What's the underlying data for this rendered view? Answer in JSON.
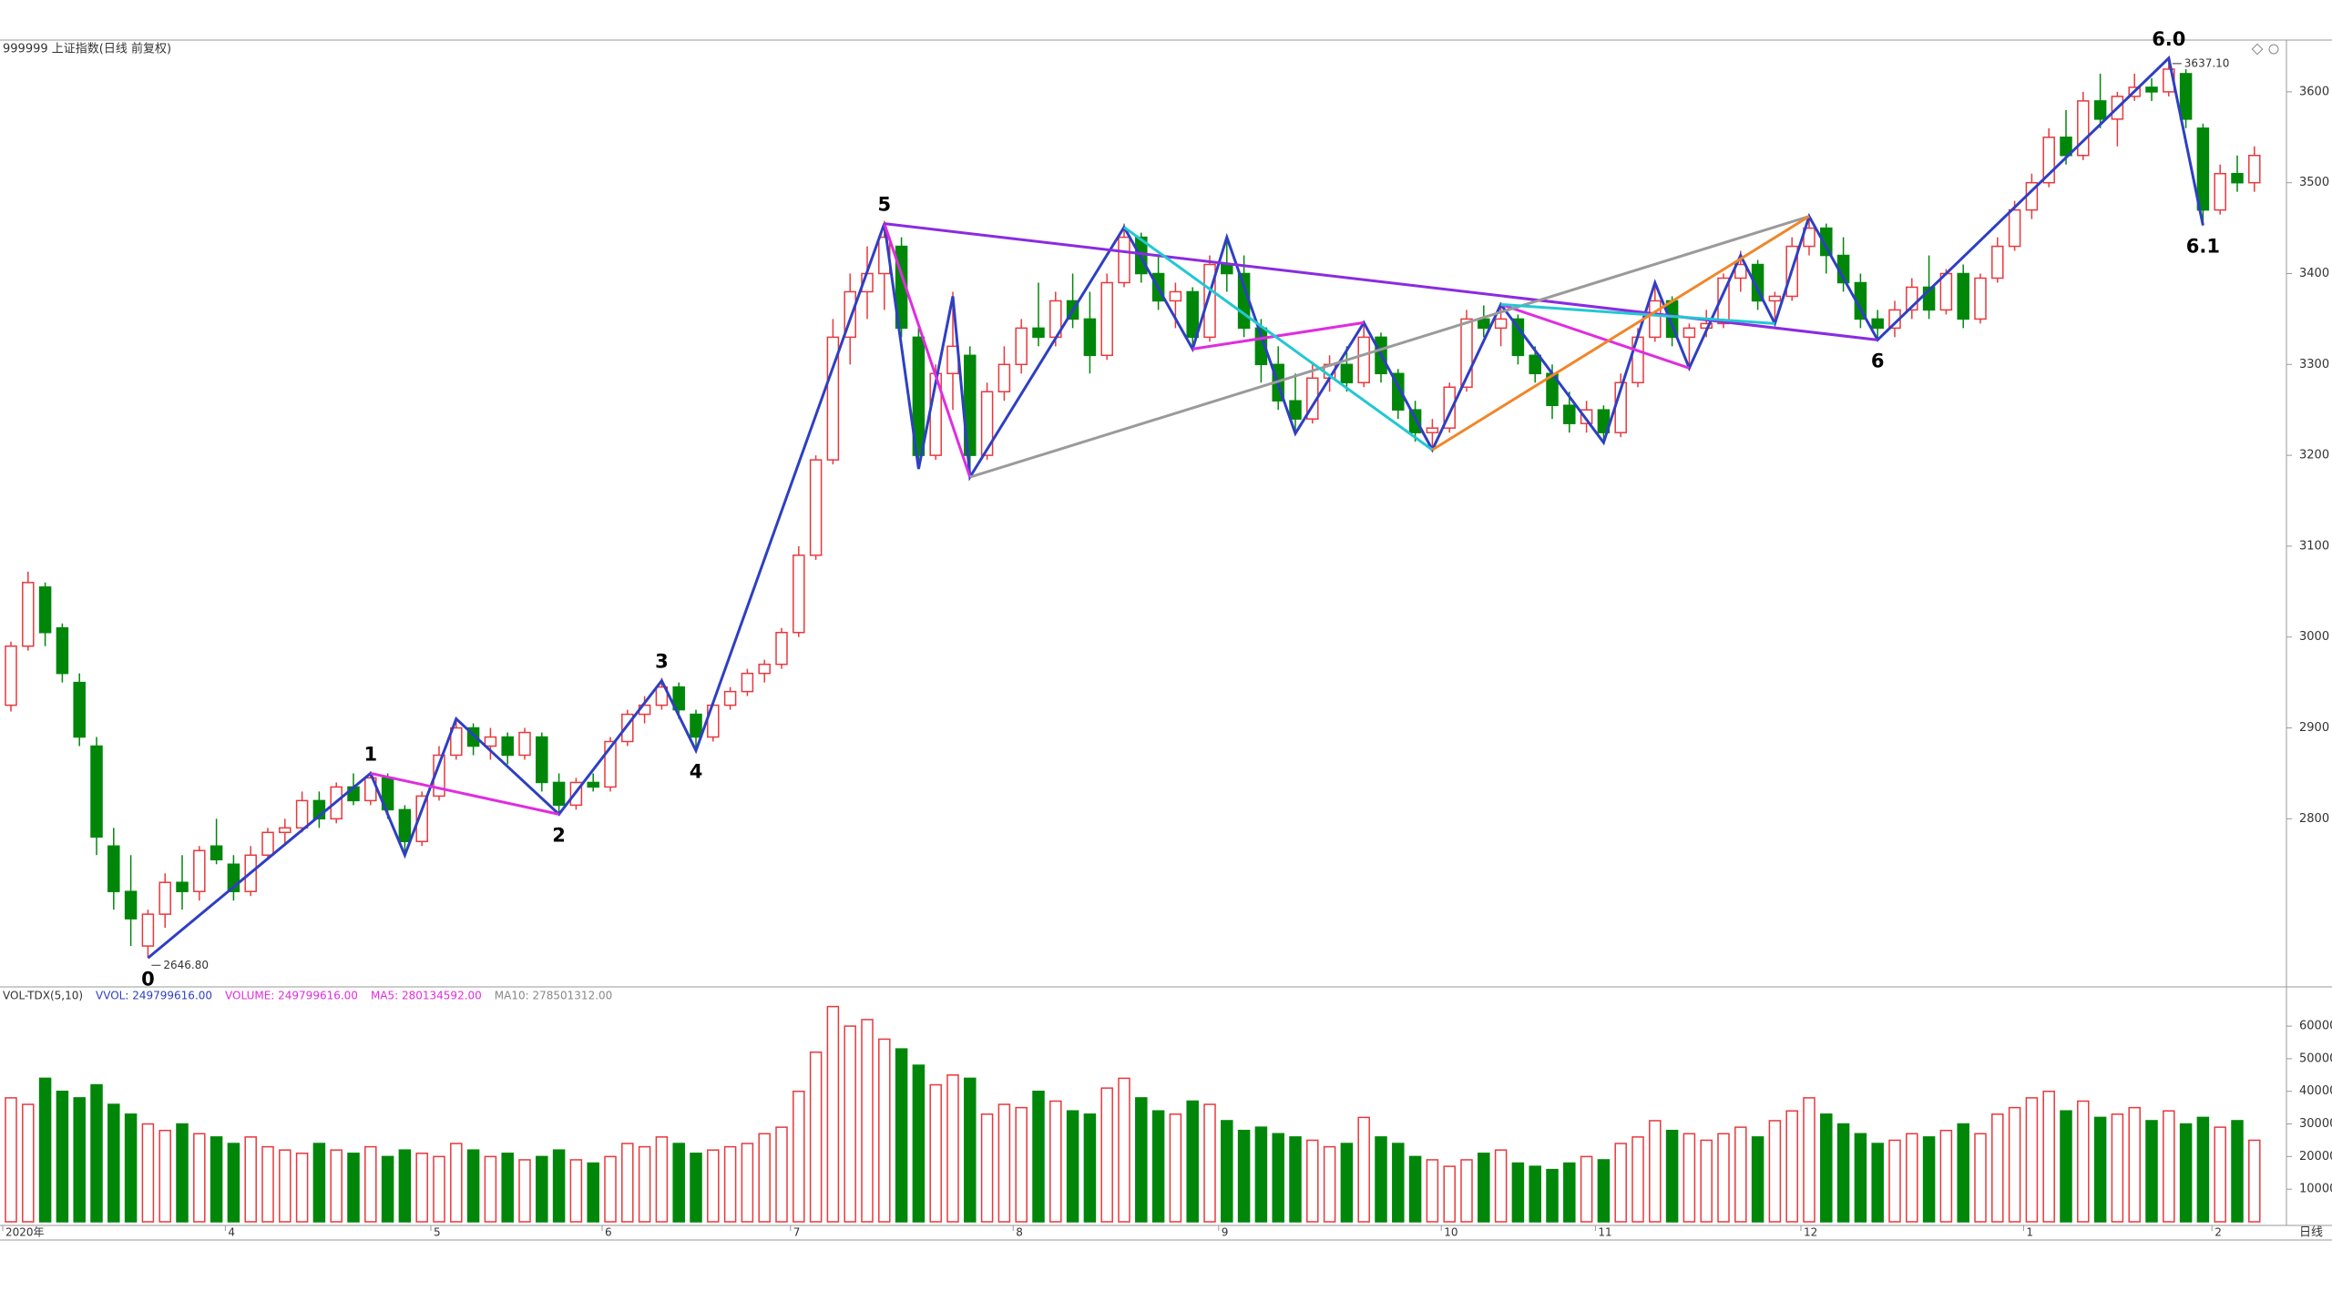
{
  "chart_data": {
    "type": "candlestick",
    "title": "999999 上证指数(日线 前复权)",
    "categories": [
      "2020年",
      null,
      null,
      null,
      null,
      null,
      null,
      null,
      null,
      null,
      null,
      null,
      null,
      "4",
      null,
      null,
      null,
      null,
      null,
      null,
      null,
      null,
      null,
      null,
      null,
      "5",
      null,
      null,
      null,
      null,
      null,
      null,
      null,
      null,
      null,
      "6",
      null,
      null,
      null,
      null,
      null,
      null,
      null,
      null,
      null,
      null,
      "7",
      null,
      null,
      null,
      null,
      null,
      null,
      null,
      null,
      null,
      null,
      null,
      null,
      "8",
      null,
      null,
      null,
      null,
      null,
      null,
      null,
      null,
      null,
      null,
      null,
      "9",
      null,
      null,
      null,
      null,
      null,
      null,
      null,
      null,
      null,
      null,
      null,
      null,
      "10",
      null,
      null,
      null,
      null,
      null,
      null,
      null,
      null,
      "11",
      null,
      null,
      null,
      null,
      null,
      null,
      null,
      null,
      null,
      null,
      null,
      "12",
      null,
      null,
      null,
      null,
      null,
      null,
      null,
      null,
      null,
      null,
      null,
      null,
      "1",
      null,
      null,
      null,
      null,
      null,
      null,
      null,
      null,
      null,
      null,
      "2",
      null,
      null
    ],
    "ohlc": [
      [
        2925,
        2995,
        2918,
        2990
      ],
      [
        2990,
        3072,
        2985,
        3060
      ],
      [
        3055,
        3060,
        2990,
        3005
      ],
      [
        3010,
        3015,
        2950,
        2960
      ],
      [
        2950,
        2960,
        2880,
        2890
      ],
      [
        2880,
        2890,
        2760,
        2780
      ],
      [
        2770,
        2790,
        2700,
        2720
      ],
      [
        2720,
        2760,
        2660,
        2690
      ],
      [
        2660,
        2700,
        2646.8,
        2695
      ],
      [
        2695,
        2740,
        2680,
        2730
      ],
      [
        2730,
        2760,
        2700,
        2720
      ],
      [
        2720,
        2770,
        2710,
        2765
      ],
      [
        2770,
        2800,
        2750,
        2755
      ],
      [
        2750,
        2760,
        2710,
        2720
      ],
      [
        2720,
        2770,
        2715,
        2760
      ],
      [
        2760,
        2790,
        2755,
        2785
      ],
      [
        2785,
        2800,
        2770,
        2790
      ],
      [
        2790,
        2830,
        2785,
        2820
      ],
      [
        2820,
        2830,
        2790,
        2800
      ],
      [
        2800,
        2840,
        2795,
        2835
      ],
      [
        2835,
        2850,
        2815,
        2820
      ],
      [
        2820,
        2852,
        2815,
        2845
      ],
      [
        2845,
        2850,
        2800,
        2810
      ],
      [
        2810,
        2815,
        2760,
        2775
      ],
      [
        2775,
        2830,
        2770,
        2825
      ],
      [
        2825,
        2880,
        2820,
        2870
      ],
      [
        2870,
        2912,
        2865,
        2900
      ],
      [
        2900,
        2905,
        2870,
        2880
      ],
      [
        2880,
        2900,
        2865,
        2890
      ],
      [
        2890,
        2895,
        2860,
        2870
      ],
      [
        2870,
        2900,
        2865,
        2895
      ],
      [
        2890,
        2895,
        2830,
        2840
      ],
      [
        2840,
        2850,
        2805,
        2815
      ],
      [
        2815,
        2845,
        2810,
        2840
      ],
      [
        2840,
        2850,
        2830,
        2835
      ],
      [
        2835,
        2890,
        2830,
        2885
      ],
      [
        2885,
        2920,
        2880,
        2915
      ],
      [
        2915,
        2935,
        2905,
        2925
      ],
      [
        2925,
        2955,
        2920,
        2945
      ],
      [
        2945,
        2950,
        2910,
        2920
      ],
      [
        2915,
        2920,
        2875,
        2890
      ],
      [
        2890,
        2930,
        2885,
        2925
      ],
      [
        2925,
        2945,
        2920,
        2940
      ],
      [
        2940,
        2965,
        2935,
        2960
      ],
      [
        2960,
        2975,
        2950,
        2970
      ],
      [
        2970,
        3010,
        2965,
        3005
      ],
      [
        3005,
        3100,
        3000,
        3090
      ],
      [
        3090,
        3200,
        3085,
        3195
      ],
      [
        3195,
        3350,
        3190,
        3330
      ],
      [
        3330,
        3400,
        3300,
        3380
      ],
      [
        3380,
        3430,
        3350,
        3400
      ],
      [
        3400,
        3458,
        3360,
        3440
      ],
      [
        3430,
        3440,
        3330,
        3340
      ],
      [
        3330,
        3340,
        3185,
        3200
      ],
      [
        3200,
        3300,
        3195,
        3290
      ],
      [
        3290,
        3380,
        3250,
        3320
      ],
      [
        3310,
        3320,
        3176,
        3200
      ],
      [
        3200,
        3280,
        3195,
        3270
      ],
      [
        3270,
        3320,
        3260,
        3300
      ],
      [
        3300,
        3350,
        3290,
        3340
      ],
      [
        3340,
        3390,
        3320,
        3330
      ],
      [
        3330,
        3380,
        3320,
        3370
      ],
      [
        3370,
        3400,
        3340,
        3350
      ],
      [
        3350,
        3380,
        3290,
        3310
      ],
      [
        3310,
        3400,
        3305,
        3390
      ],
      [
        3390,
        3455,
        3385,
        3440
      ],
      [
        3440,
        3445,
        3390,
        3400
      ],
      [
        3400,
        3420,
        3360,
        3370
      ],
      [
        3370,
        3390,
        3340,
        3380
      ],
      [
        3380,
        3385,
        3315,
        3330
      ],
      [
        3330,
        3420,
        3325,
        3410
      ],
      [
        3410,
        3442,
        3380,
        3400
      ],
      [
        3400,
        3420,
        3330,
        3340
      ],
      [
        3340,
        3350,
        3280,
        3300
      ],
      [
        3300,
        3320,
        3250,
        3260
      ],
      [
        3260,
        3290,
        3224,
        3240
      ],
      [
        3240,
        3300,
        3235,
        3285
      ],
      [
        3285,
        3310,
        3270,
        3300
      ],
      [
        3300,
        3320,
        3270,
        3280
      ],
      [
        3280,
        3348,
        3275,
        3330
      ],
      [
        3330,
        3335,
        3280,
        3290
      ],
      [
        3290,
        3295,
        3240,
        3250
      ],
      [
        3250,
        3260,
        3215,
        3225
      ],
      [
        3225,
        3240,
        3206,
        3230
      ],
      [
        3230,
        3280,
        3225,
        3275
      ],
      [
        3275,
        3360,
        3270,
        3350
      ],
      [
        3350,
        3365,
        3330,
        3340
      ],
      [
        3340,
        3368,
        3320,
        3350
      ],
      [
        3350,
        3355,
        3300,
        3310
      ],
      [
        3310,
        3320,
        3280,
        3290
      ],
      [
        3290,
        3300,
        3240,
        3255
      ],
      [
        3255,
        3270,
        3225,
        3235
      ],
      [
        3235,
        3260,
        3225,
        3250
      ],
      [
        3250,
        3255,
        3214,
        3225
      ],
      [
        3225,
        3290,
        3220,
        3280
      ],
      [
        3280,
        3340,
        3275,
        3330
      ],
      [
        3330,
        3392,
        3325,
        3370
      ],
      [
        3370,
        3375,
        3320,
        3330
      ],
      [
        3330,
        3345,
        3296,
        3340
      ],
      [
        3340,
        3360,
        3330,
        3345
      ],
      [
        3345,
        3400,
        3340,
        3395
      ],
      [
        3395,
        3425,
        3380,
        3410
      ],
      [
        3410,
        3415,
        3360,
        3370
      ],
      [
        3370,
        3380,
        3345,
        3375
      ],
      [
        3375,
        3440,
        3370,
        3430
      ],
      [
        3430,
        3465,
        3420,
        3450
      ],
      [
        3450,
        3455,
        3400,
        3420
      ],
      [
        3420,
        3440,
        3380,
        3390
      ],
      [
        3390,
        3400,
        3340,
        3350
      ],
      [
        3350,
        3360,
        3327,
        3340
      ],
      [
        3340,
        3370,
        3330,
        3360
      ],
      [
        3360,
        3395,
        3350,
        3385
      ],
      [
        3385,
        3420,
        3350,
        3360
      ],
      [
        3360,
        3405,
        3355,
        3400
      ],
      [
        3400,
        3410,
        3340,
        3350
      ],
      [
        3350,
        3400,
        3345,
        3395
      ],
      [
        3395,
        3440,
        3390,
        3430
      ],
      [
        3430,
        3480,
        3425,
        3470
      ],
      [
        3470,
        3510,
        3460,
        3500
      ],
      [
        3500,
        3560,
        3495,
        3550
      ],
      [
        3550,
        3580,
        3520,
        3530
      ],
      [
        3530,
        3600,
        3525,
        3590
      ],
      [
        3590,
        3620,
        3560,
        3570
      ],
      [
        3570,
        3600,
        3540,
        3595
      ],
      [
        3595,
        3620,
        3590,
        3605
      ],
      [
        3605,
        3615,
        3590,
        3600
      ],
      [
        3600,
        3637.1,
        3595,
        3625
      ],
      [
        3620,
        3625,
        3560,
        3570
      ],
      [
        3560,
        3565,
        3453,
        3470
      ],
      [
        3470,
        3520,
        3465,
        3510
      ],
      [
        3510,
        3530,
        3490,
        3500
      ],
      [
        3500,
        3540,
        3490,
        3530
      ]
    ],
    "up_color": "#e8383d",
    "down_color": "#00870a",
    "ylim": [
      2616,
      3657
    ],
    "yticks": [
      2800,
      2900,
      3000,
      3100,
      3200,
      3300,
      3400,
      3500,
      3600
    ],
    "price_notes": [
      {
        "value": 2646.8,
        "label": "2646.80",
        "x": 8
      },
      {
        "value": 3637.1,
        "label": "3637.10",
        "x": 126
      }
    ],
    "waves": [
      {
        "color": "#2e3fc4",
        "points": [
          [
            8,
            2646.8
          ],
          [
            21,
            2850
          ],
          [
            23,
            2760
          ],
          [
            26,
            2910
          ],
          [
            32,
            2805
          ],
          [
            38,
            2952
          ],
          [
            40,
            2875
          ],
          [
            51,
            3455
          ],
          [
            53,
            3185
          ],
          [
            55,
            3375
          ],
          [
            56,
            3176
          ],
          [
            65,
            3451
          ],
          [
            69,
            3317
          ],
          [
            71,
            3440
          ],
          [
            75,
            3224
          ],
          [
            79,
            3346
          ],
          [
            83,
            3206
          ],
          [
            87,
            3366
          ],
          [
            93,
            3214
          ],
          [
            96,
            3390
          ],
          [
            98,
            3296
          ],
          [
            101,
            3420
          ],
          [
            103,
            3345
          ],
          [
            105,
            3463
          ],
          [
            109,
            3327
          ],
          [
            126,
            3637.1
          ],
          [
            128,
            3453
          ]
        ]
      },
      {
        "color": "#e02ce0",
        "points": [
          [
            21,
            2850
          ],
          [
            32,
            2805
          ]
        ]
      },
      {
        "color": "#e02ce0",
        "points": [
          [
            51,
            3455
          ],
          [
            56,
            3176
          ]
        ]
      },
      {
        "color": "#e02ce0",
        "points": [
          [
            69,
            3317
          ],
          [
            79,
            3346
          ]
        ]
      },
      {
        "color": "#e02ce0",
        "points": [
          [
            87,
            3366
          ],
          [
            98,
            3296
          ]
        ]
      },
      {
        "color": "#8a2be2",
        "points": [
          [
            51,
            3455
          ],
          [
            109,
            3327
          ]
        ]
      },
      {
        "color": "#9a9a9a",
        "points": [
          [
            56,
            3176
          ],
          [
            105,
            3463
          ]
        ]
      },
      {
        "color": "#22c8d2",
        "points": [
          [
            65,
            3451
          ],
          [
            83,
            3206
          ]
        ]
      },
      {
        "color": "#22c8d2",
        "points": [
          [
            87,
            3366
          ],
          [
            103,
            3345
          ]
        ]
      },
      {
        "color": "#f0862a",
        "points": [
          [
            83,
            3206
          ],
          [
            105,
            3463
          ]
        ]
      }
    ],
    "wave_labels": [
      {
        "label": "0",
        "x": 8,
        "y": 2646.8,
        "pos": "below"
      },
      {
        "label": "1",
        "x": 21,
        "y": 2850,
        "pos": "above"
      },
      {
        "label": "2",
        "x": 32,
        "y": 2805,
        "pos": "below"
      },
      {
        "label": "3",
        "x": 38,
        "y": 2952,
        "pos": "above"
      },
      {
        "label": "4",
        "x": 40,
        "y": 2875,
        "pos": "below"
      },
      {
        "label": "5",
        "x": 51,
        "y": 3455,
        "pos": "above"
      },
      {
        "label": "6",
        "x": 109,
        "y": 3327,
        "pos": "below"
      },
      {
        "label": "6.0",
        "x": 126,
        "y": 3637.1,
        "pos": "above"
      },
      {
        "label": "6.1",
        "x": 128,
        "y": 3453,
        "pos": "below"
      }
    ],
    "volume": {
      "legend": [
        {
          "text": "VOL-TDX(5,10)",
          "color": "#333333"
        },
        {
          "text": "VVOL: 249799616.00",
          "color": "#2e3fc4"
        },
        {
          "text": "VOLUME: 249799616.00",
          "color": "#e02ce0"
        },
        {
          "text": "MA5: 280134592.00",
          "color": "#e02ce0"
        },
        {
          "text": "MA10: 278501312.00",
          "color": "#888888"
        }
      ],
      "values": [
        38000,
        36000,
        44000,
        40000,
        38000,
        42000,
        36000,
        33000,
        30000,
        28000,
        30000,
        27000,
        26000,
        24000,
        26000,
        23000,
        22000,
        21000,
        24000,
        22000,
        21000,
        23000,
        20000,
        22000,
        21000,
        20000,
        24000,
        22000,
        20000,
        21000,
        19000,
        20000,
        22000,
        19000,
        18000,
        20000,
        24000,
        23000,
        26000,
        24000,
        21000,
        22000,
        23000,
        24000,
        27000,
        29000,
        40000,
        52000,
        66000,
        60000,
        62000,
        56000,
        53000,
        48000,
        42000,
        45000,
        44000,
        33000,
        36000,
        35000,
        40000,
        37000,
        34000,
        33000,
        41000,
        44000,
        38000,
        34000,
        33000,
        37000,
        36000,
        31000,
        28000,
        29000,
        27000,
        26000,
        25000,
        23000,
        24000,
        32000,
        26000,
        24000,
        20000,
        19000,
        17000,
        19000,
        21000,
        22000,
        18000,
        17000,
        16000,
        18000,
        20000,
        19000,
        24000,
        26000,
        31000,
        28000,
        27000,
        25000,
        27000,
        29000,
        26000,
        31000,
        34000,
        38000,
        33000,
        30000,
        27000,
        24000,
        25000,
        27000,
        26000,
        28000,
        30000,
        27000,
        33000,
        35000,
        38000,
        40000,
        34000,
        37000,
        32000,
        33000,
        35000,
        31000,
        34000,
        30000,
        32000,
        29000,
        31000,
        25000
      ],
      "ylim": [
        0,
        67000
      ],
      "yticks": [
        10000,
        20000,
        30000,
        40000,
        50000,
        60000
      ]
    },
    "period_label": "日线"
  }
}
